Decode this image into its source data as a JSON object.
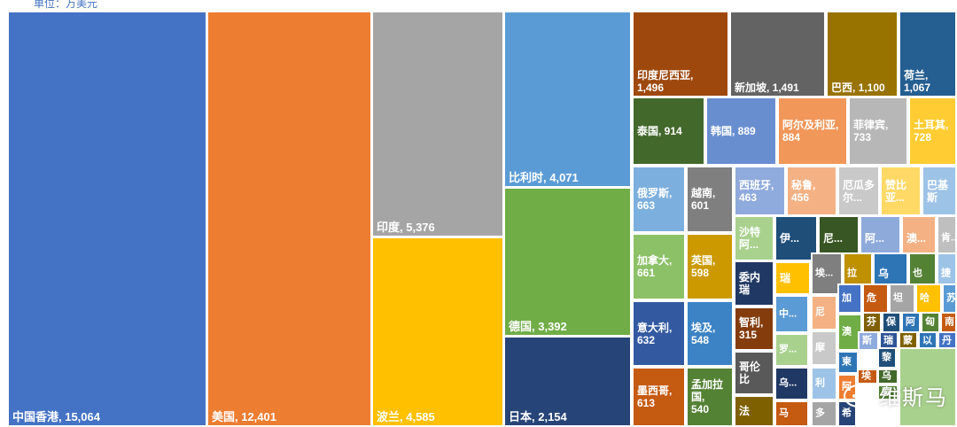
{
  "unit_label": "单位：万美元",
  "watermark": "维斯马",
  "chart_data": {
    "type": "treemap",
    "unit": "万美元",
    "items": [
      {
        "name": "中国香港",
        "value": 15064,
        "label": "中国香港, 15,064",
        "color": "#4472c4"
      },
      {
        "name": "美国",
        "value": 12401,
        "label": "美国, 12,401",
        "color": "#ed7d31"
      },
      {
        "name": "印度",
        "value": 5376,
        "label": "印度, 5,376",
        "color": "#a5a5a5"
      },
      {
        "name": "波兰",
        "value": 4585,
        "label": "波兰, 4,585",
        "color": "#ffc000"
      },
      {
        "name": "比利时",
        "value": 4071,
        "label": "比利时, 4,071",
        "color": "#5b9bd5"
      },
      {
        "name": "德国",
        "value": 3392,
        "label": "德国, 3,392",
        "color": "#70ad47"
      },
      {
        "name": "日本",
        "value": 2154,
        "label": "日本, 2,154",
        "color": "#264478"
      },
      {
        "name": "印度尼西亚",
        "value": 1496,
        "label": "印度尼西亚,",
        "label2": "1,496",
        "color": "#9e480e"
      },
      {
        "name": "新加坡",
        "value": 1491,
        "label": "新加坡, 1,491",
        "color": "#636363"
      },
      {
        "name": "巴西",
        "value": 1100,
        "label": "巴西, 1,100",
        "color": "#997300"
      },
      {
        "name": "荷兰",
        "value": 1067,
        "label": "荷兰,",
        "label2": "1,067",
        "color": "#255e91"
      },
      {
        "name": "泰国",
        "value": 914,
        "label": "泰国, 914",
        "color": "#43682b"
      },
      {
        "name": "韩国",
        "value": 889,
        "label": "韩国, 889",
        "color": "#698ed0"
      },
      {
        "name": "阿尔及利亚",
        "value": 884,
        "label": "阿尔及利亚,",
        "label2": "884",
        "color": "#f1975a"
      },
      {
        "name": "菲律宾",
        "value": 733,
        "label": "菲律宾,",
        "label2": "733",
        "color": "#b7b7b7"
      },
      {
        "name": "土耳其",
        "value": 728,
        "label": "土耳其,",
        "label2": "728",
        "color": "#ffcd33"
      },
      {
        "name": "俄罗斯",
        "value": 663,
        "label": "俄罗斯,",
        "label2": "663",
        "color": "#7cafdd"
      },
      {
        "name": "越南",
        "value": 601,
        "label": "越南,",
        "label2": "601",
        "color": "#7f7f7f"
      },
      {
        "name": "加拿大",
        "value": 661,
        "label": "加拿大,",
        "label2": "661",
        "color": "#8cc168"
      },
      {
        "name": "英国",
        "value": 598,
        "label": "英国,",
        "label2": "598",
        "color": "#cc9a00"
      },
      {
        "name": "意大利",
        "value": 632,
        "label": "意大利,",
        "label2": "632",
        "color": "#335aa1"
      },
      {
        "name": "埃及",
        "value": 548,
        "label": "埃及,",
        "label2": "548",
        "color": "#3c83c5"
      },
      {
        "name": "墨西哥",
        "value": 613,
        "label": "墨西哥,",
        "label2": "613",
        "color": "#c55a11"
      },
      {
        "name": "孟加拉国",
        "value": 540,
        "label": "孟加拉",
        "label2": "国,",
        "label3": "540",
        "color": "#548235"
      },
      {
        "name": "西班牙",
        "value": 463,
        "label": "西班牙,",
        "label2": "463",
        "color": "#8faadc"
      },
      {
        "name": "秘鲁",
        "value": 456,
        "label": "秘鲁,",
        "label2": "456",
        "color": "#f4b183"
      },
      {
        "name": "厄瓜多尔",
        "label": "厄瓜多",
        "label2": "尔...",
        "color": "#c9c9c9"
      },
      {
        "name": "赞比亚",
        "label": "赞比",
        "label2": "亚...",
        "color": "#ffd966"
      },
      {
        "name": "巴基斯坦",
        "label": "巴基",
        "label2": "斯",
        "color": "#9dc3e6"
      },
      {
        "name": "沙特阿拉伯",
        "label": "沙特",
        "label2": "阿...",
        "color": "#a9d18e"
      },
      {
        "name": "委内瑞拉",
        "label": "委内",
        "label2": "瑞",
        "color": "#203864"
      },
      {
        "name": "智利",
        "value": 315,
        "label": "智利,",
        "label2": "315",
        "color": "#843c0c"
      },
      {
        "name": "哥伦比亚",
        "label": "哥伦",
        "label2": "比",
        "color": "#595959"
      },
      {
        "name": "伊...",
        "label": "伊...",
        "color": "#1f4e79"
      },
      {
        "name": "尼...",
        "label": "尼...",
        "color": "#375623"
      },
      {
        "name": "阿...",
        "label": "阿...",
        "color": "#8eaadb"
      },
      {
        "name": "澳...",
        "label": "澳...",
        "color": "#f4b183"
      },
      {
        "name": "肯...",
        "label": "肯...",
        "color": "#bfbfbf"
      },
      {
        "name": "瑞",
        "label": "瑞",
        "color": "#ffc000"
      },
      {
        "name": "埃...",
        "label": "埃...",
        "color": "#7f7f7f"
      },
      {
        "name": "拉",
        "label": "拉",
        "color": "#bf9000"
      },
      {
        "name": "乌",
        "label": "乌",
        "color": "#2e75b6"
      },
      {
        "name": "也",
        "label": "也",
        "color": "#548235"
      },
      {
        "name": "捷",
        "label": "捷",
        "color": "#9dc3e6"
      },
      {
        "name": "中...",
        "label": "中...",
        "color": "#5b9bd5"
      },
      {
        "name": "尼",
        "label": "尼",
        "color": "#f4b183"
      },
      {
        "name": "加",
        "label": "加",
        "color": "#4472c4"
      },
      {
        "name": "危",
        "label": "危",
        "color": "#c55a11"
      },
      {
        "name": "坦",
        "label": "坦",
        "color": "#a5a5a5"
      },
      {
        "name": "哈",
        "label": "哈",
        "color": "#ffc000"
      },
      {
        "name": "苏",
        "label": "苏",
        "color": "#5b9bd5"
      },
      {
        "name": "罗...",
        "label": "罗...",
        "color": "#a9d18e"
      },
      {
        "name": "摩",
        "label": "摩",
        "color": "#c9c9c9"
      },
      {
        "name": "芬",
        "label": "芬",
        "color": "#806000"
      },
      {
        "name": "保",
        "label": "保",
        "color": "#1f4e79"
      },
      {
        "name": "阿",
        "label": "阿",
        "color": "#2e75b6"
      },
      {
        "name": "匈",
        "label": "匈",
        "color": "#548235"
      },
      {
        "name": "南",
        "label": "南",
        "color": "#c55a11"
      },
      {
        "name": "澳",
        "label": "澳",
        "color": "#70ad47"
      },
      {
        "name": "斯",
        "label": "斯",
        "color": "#8faadc"
      },
      {
        "name": "瑞",
        "label": "瑞",
        "color": "#2f5597"
      },
      {
        "name": "蒙",
        "label": "蒙",
        "color": "#7f6000"
      },
      {
        "name": "以",
        "label": "以",
        "color": "#2e75b6"
      },
      {
        "name": "丹",
        "label": "丹",
        "color": "#4472c4"
      },
      {
        "name": "乌...",
        "label": "乌...",
        "color": "#203864"
      },
      {
        "name": "利",
        "label": "利",
        "color": "#9dc3e6"
      },
      {
        "name": "柬",
        "label": "柬",
        "color": "#2e75b6"
      },
      {
        "name": "阿",
        "label": "阿",
        "color": "#ed7d31"
      },
      {
        "name": "埃",
        "label": "埃",
        "color": "#c55a11"
      },
      {
        "name": "黎",
        "label": "黎",
        "color": "#1f4e79"
      },
      {
        "name": "乌",
        "label": "乌",
        "color": "#43682b"
      },
      {
        "name": "索",
        "label": "索",
        "color": "#548235"
      },
      {
        "name": "法",
        "label": "法",
        "color": "#7f6000"
      },
      {
        "name": "马",
        "label": "马",
        "color": "#c55a11"
      },
      {
        "name": "多",
        "label": "多",
        "color": "#a5a5a5"
      },
      {
        "name": "希",
        "label": "希",
        "color": "#264478"
      },
      {
        "name": "",
        "label": "",
        "color": "#a9d18e"
      }
    ]
  }
}
